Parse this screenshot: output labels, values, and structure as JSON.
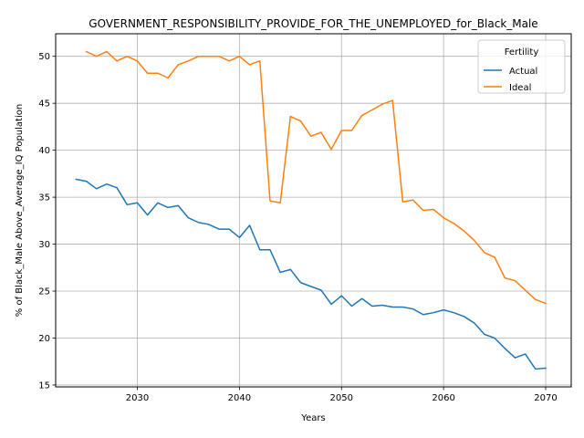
{
  "chart_data": {
    "type": "line",
    "title": "GOVERNMENT_RESPONSIBILITY_PROVIDE_FOR_THE_UNEMPLOYED_for_Black_Male",
    "xlabel": "Years",
    "ylabel": "% of Black_Male Above_Average_IQ Population",
    "xlim": [
      2022,
      2072.5
    ],
    "ylim": [
      14.8,
      52.4
    ],
    "xticks": [
      2030,
      2040,
      2050,
      2060,
      2070
    ],
    "yticks": [
      15,
      20,
      25,
      30,
      35,
      40,
      45,
      50
    ],
    "grid": true,
    "legend": {
      "title": "Fertility",
      "placement": "top-right"
    },
    "colors": {
      "Actual": "#1f77b4",
      "Ideal": "#ff7f0e"
    },
    "series": [
      {
        "name": "Actual",
        "x": [
          2024,
          2025,
          2026,
          2027,
          2028,
          2029,
          2030,
          2031,
          2032,
          2033,
          2034,
          2035,
          2036,
          2037,
          2038,
          2039,
          2040,
          2041,
          2042,
          2043,
          2044,
          2045,
          2046,
          2047,
          2048,
          2049,
          2050,
          2051,
          2052,
          2053,
          2054,
          2055,
          2056,
          2057,
          2058,
          2059,
          2060,
          2061,
          2062,
          2063,
          2064,
          2065,
          2066,
          2067,
          2068,
          2069,
          2070
        ],
        "y": [
          36.9,
          36.7,
          35.9,
          36.4,
          36.0,
          34.2,
          34.4,
          33.1,
          34.4,
          33.9,
          34.1,
          32.8,
          32.3,
          32.1,
          31.6,
          31.6,
          30.7,
          32.0,
          29.4,
          29.4,
          27.0,
          27.3,
          25.9,
          25.5,
          25.1,
          23.6,
          24.5,
          23.4,
          24.2,
          23.4,
          23.5,
          23.3,
          23.3,
          23.1,
          22.5,
          22.7,
          23.0,
          22.7,
          22.3,
          21.6,
          20.4,
          20.0,
          18.9,
          17.9,
          18.3,
          16.7,
          16.8
        ]
      },
      {
        "name": "Ideal",
        "x": [
          2025,
          2026,
          2027,
          2028,
          2029,
          2030,
          2031,
          2032,
          2033,
          2034,
          2035,
          2036,
          2037,
          2038,
          2039,
          2040,
          2041,
          2042,
          2043,
          2044,
          2045,
          2046,
          2047,
          2048,
          2049,
          2050,
          2051,
          2052,
          2053,
          2054,
          2055,
          2056,
          2057,
          2058,
          2059,
          2060,
          2061,
          2062,
          2063,
          2064,
          2065,
          2066,
          2067,
          2068,
          2069,
          2070
        ],
        "y": [
          50.5,
          50.0,
          50.5,
          49.5,
          50.0,
          49.5,
          48.2,
          48.2,
          47.7,
          49.1,
          49.5,
          50.0,
          50.0,
          50.0,
          49.5,
          50.0,
          49.1,
          49.5,
          34.6,
          34.4,
          43.6,
          43.1,
          41.5,
          41.9,
          40.1,
          42.1,
          42.1,
          43.7,
          44.3,
          44.9,
          45.3,
          34.5,
          34.7,
          33.6,
          33.7,
          32.8,
          32.2,
          31.4,
          30.4,
          29.1,
          28.6,
          26.4,
          26.1,
          25.1,
          24.1,
          23.7
        ]
      }
    ]
  }
}
